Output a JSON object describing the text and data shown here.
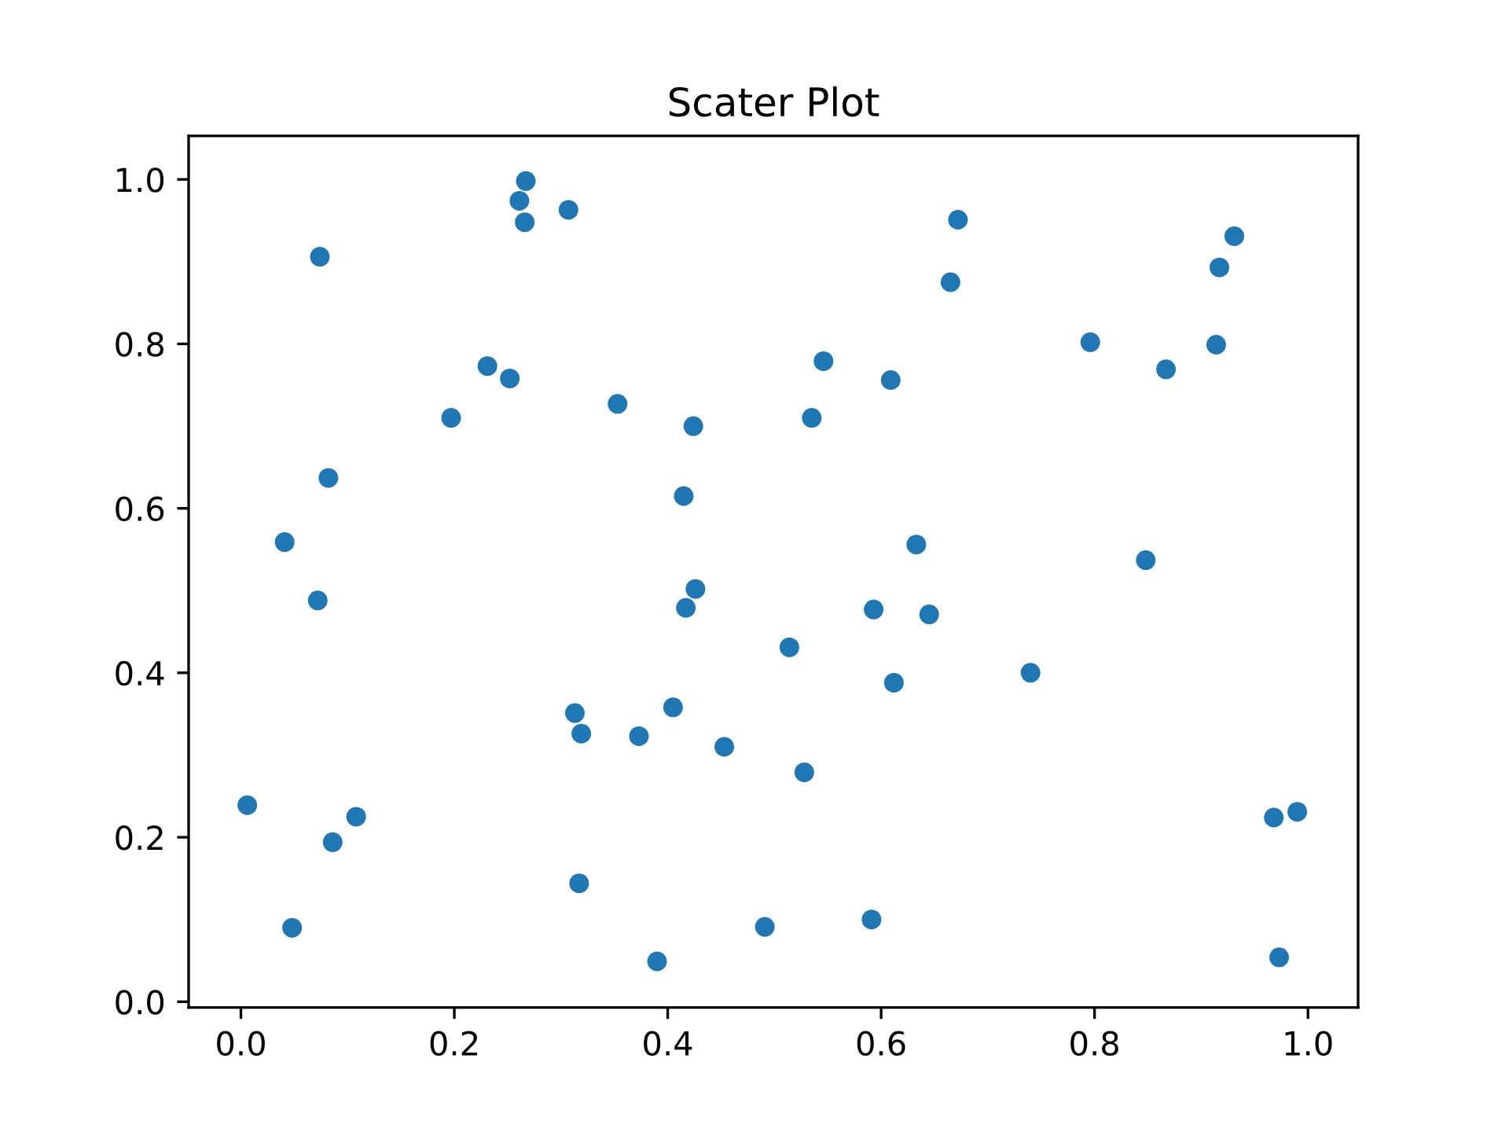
{
  "chart_data": {
    "type": "scatter",
    "title": "Scater Plot",
    "x": [
      0.006,
      0.048,
      0.041,
      0.072,
      0.082,
      0.074,
      0.086,
      0.108,
      0.197,
      0.231,
      0.252,
      0.261,
      0.267,
      0.266,
      0.307,
      0.313,
      0.319,
      0.317,
      0.353,
      0.373,
      0.39,
      0.405,
      0.415,
      0.417,
      0.426,
      0.424,
      0.453,
      0.491,
      0.514,
      0.528,
      0.535,
      0.546,
      0.591,
      0.593,
      0.609,
      0.612,
      0.633,
      0.645,
      0.665,
      0.672,
      0.74,
      0.796,
      0.848,
      0.867,
      0.914,
      0.917,
      0.931,
      0.968,
      0.99,
      0.973
    ],
    "values": [
      0.239,
      0.09,
      0.559,
      0.488,
      0.637,
      0.906,
      0.194,
      0.225,
      0.71,
      0.773,
      0.758,
      0.974,
      0.998,
      0.948,
      0.963,
      0.351,
      0.326,
      0.144,
      0.727,
      0.323,
      0.049,
      0.358,
      0.615,
      0.479,
      0.502,
      0.7,
      0.31,
      0.091,
      0.431,
      0.279,
      0.71,
      0.779,
      0.1,
      0.477,
      0.756,
      0.388,
      0.556,
      0.471,
      0.875,
      0.951,
      0.4,
      0.802,
      0.537,
      0.769,
      0.799,
      0.893,
      0.931,
      0.224,
      0.231,
      0.054
    ],
    "color": "#1f77b4",
    "marker": "circle",
    "xlim": [
      -0.049,
      1.047
    ],
    "ylim": [
      -0.007,
      1.053
    ],
    "xticks": [
      {
        "value": 0,
        "label": "0.0"
      },
      0.2,
      0.4,
      0.6,
      0.8,
      {
        "value": 1,
        "label": "1.0"
      }
    ],
    "yticks": [
      {
        "value": 0,
        "label": "0.0"
      },
      0.2,
      0.4,
      0.6,
      0.8,
      {
        "value": 1,
        "label": "1.0"
      }
    ]
  }
}
